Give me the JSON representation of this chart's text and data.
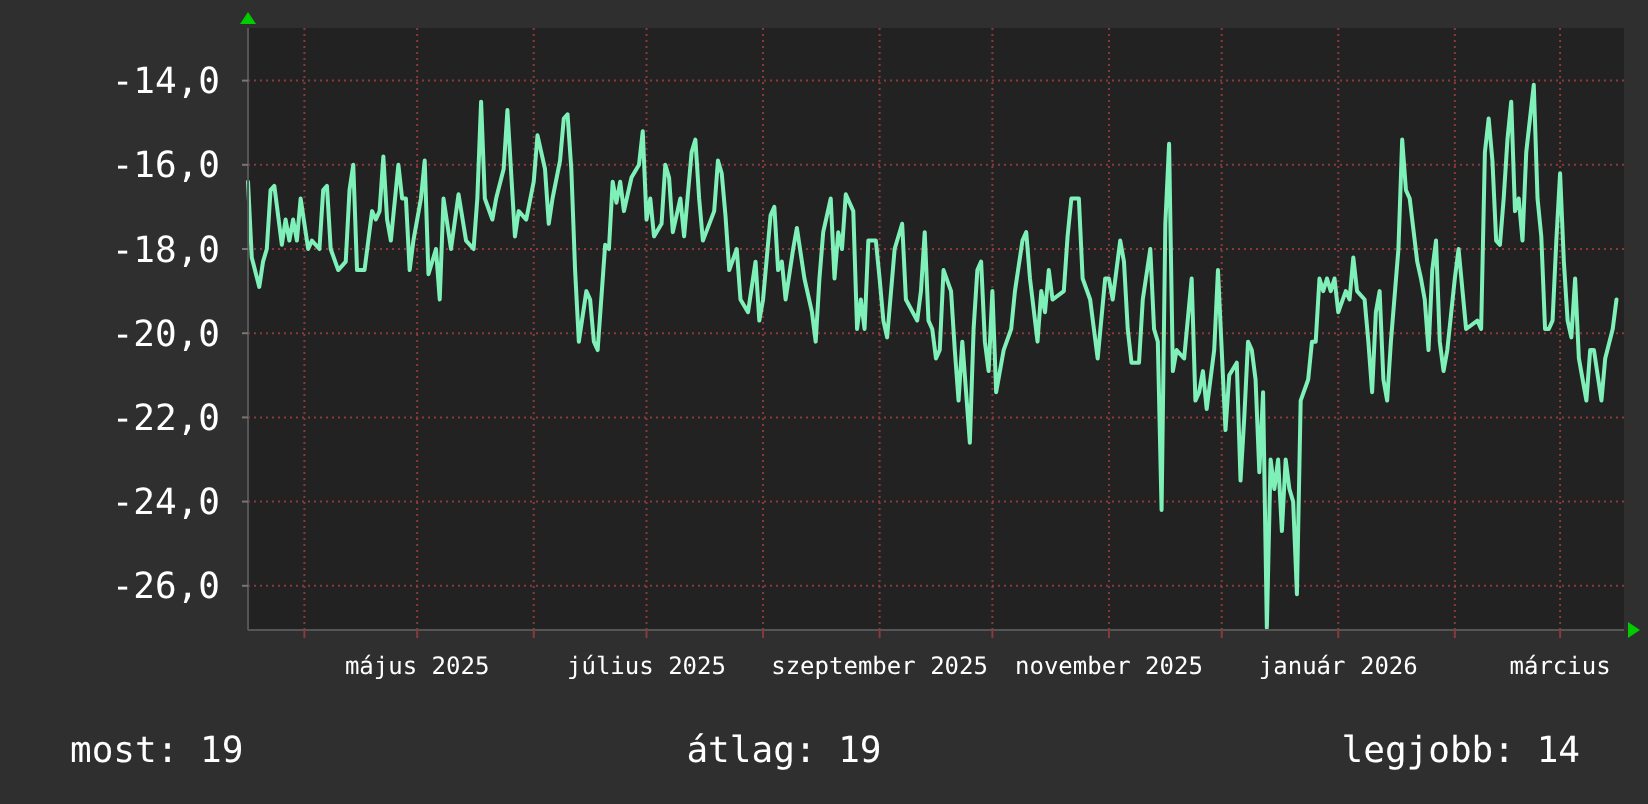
{
  "chart_data": {
    "type": "line",
    "xlim": [
      "2025-03-17",
      "2026-03-18"
    ],
    "xticks": [
      {
        "value": "2025-04-01",
        "label": null
      },
      {
        "value": "2025-05-01",
        "label": "május 2025"
      },
      {
        "value": "2025-06-01",
        "label": null
      },
      {
        "value": "2025-07-01",
        "label": "július 2025"
      },
      {
        "value": "2025-08-01",
        "label": null
      },
      {
        "value": "2025-09-01",
        "label": "szeptember 2025"
      },
      {
        "value": "2025-10-01",
        "label": null
      },
      {
        "value": "2025-11-01",
        "label": "november 2025"
      },
      {
        "value": "2025-12-01",
        "label": null
      },
      {
        "value": "2026-01-01",
        "label": "január 2026"
      },
      {
        "value": "2026-02-01",
        "label": null
      },
      {
        "value": "2026-03-01",
        "label": "március"
      }
    ],
    "ylim": [
      -27.05,
      -12.75
    ],
    "yticks": [
      {
        "value": -14,
        "label": "-14,0"
      },
      {
        "value": -16,
        "label": "-16,0"
      },
      {
        "value": -18,
        "label": "-18,0"
      },
      {
        "value": -20,
        "label": "-20,0"
      },
      {
        "value": -22,
        "label": "-22,0"
      },
      {
        "value": -24,
        "label": "-24,0"
      },
      {
        "value": -26,
        "label": "-26,0"
      }
    ],
    "grid": true,
    "marker": "none",
    "line_style": "solid",
    "annotations": [
      "most: 19",
      "átlag: 19",
      "legjobb: 14"
    ],
    "series": [
      {
        "color": "#7ff0b8",
        "x": [
          "2025-03-17",
          "2025-03-18",
          "2025-03-20",
          "2025-03-21",
          "2025-03-22",
          "2025-03-23",
          "2025-03-24",
          "2025-03-26",
          "2025-03-27",
          "2025-03-28",
          "2025-03-29",
          "2025-03-30",
          "2025-03-31",
          "2025-04-02",
          "2025-04-03",
          "2025-04-05",
          "2025-04-06",
          "2025-04-07",
          "2025-04-08",
          "2025-04-10",
          "2025-04-12",
          "2025-04-13",
          "2025-04-14",
          "2025-04-15",
          "2025-04-17",
          "2025-04-19",
          "2025-04-20",
          "2025-04-21",
          "2025-04-22",
          "2025-04-23",
          "2025-04-24",
          "2025-04-26",
          "2025-04-27",
          "2025-04-28",
          "2025-04-29",
          "2025-04-30",
          "2025-05-02",
          "2025-05-03",
          "2025-05-04",
          "2025-05-06",
          "2025-05-07",
          "2025-05-08",
          "2025-05-10",
          "2025-05-12",
          "2025-05-14",
          "2025-05-16",
          "2025-05-17",
          "2025-05-18",
          "2025-05-19",
          "2025-05-21",
          "2025-05-22",
          "2025-05-24",
          "2025-05-25",
          "2025-05-27",
          "2025-05-28",
          "2025-05-30",
          "2025-06-01",
          "2025-06-02",
          "2025-06-04",
          "2025-06-05",
          "2025-06-06",
          "2025-06-08",
          "2025-06-09",
          "2025-06-10",
          "2025-06-11",
          "2025-06-12",
          "2025-06-13",
          "2025-06-15",
          "2025-06-16",
          "2025-06-17",
          "2025-06-18",
          "2025-06-20",
          "2025-06-21",
          "2025-06-22",
          "2025-06-23",
          "2025-06-24",
          "2025-06-25",
          "2025-06-27",
          "2025-06-29",
          "2025-06-30",
          "2025-07-01",
          "2025-07-02",
          "2025-07-03",
          "2025-07-05",
          "2025-07-06",
          "2025-07-07",
          "2025-07-08",
          "2025-07-10",
          "2025-07-11",
          "2025-07-13",
          "2025-07-14",
          "2025-07-15",
          "2025-07-16",
          "2025-07-19",
          "2025-07-20",
          "2025-07-21",
          "2025-07-22",
          "2025-07-23",
          "2025-07-25",
          "2025-07-26",
          "2025-07-28",
          "2025-07-30",
          "2025-07-31",
          "2025-08-01",
          "2025-08-03",
          "2025-08-04",
          "2025-08-05",
          "2025-08-06",
          "2025-08-07",
          "2025-08-09",
          "2025-08-10",
          "2025-08-12",
          "2025-08-14",
          "2025-08-15",
          "2025-08-16",
          "2025-08-17",
          "2025-08-19",
          "2025-08-20",
          "2025-08-21",
          "2025-08-22",
          "2025-08-23",
          "2025-08-25",
          "2025-08-26",
          "2025-08-27",
          "2025-08-28",
          "2025-08-29",
          "2025-08-31",
          "2025-09-01",
          "2025-09-02",
          "2025-09-03",
          "2025-09-05",
          "2025-09-07",
          "2025-09-08",
          "2025-09-11",
          "2025-09-12",
          "2025-09-13",
          "2025-09-14",
          "2025-09-15",
          "2025-09-16",
          "2025-09-17",
          "2025-09-18",
          "2025-09-20",
          "2025-09-21",
          "2025-09-22",
          "2025-09-23",
          "2025-09-25",
          "2025-09-26",
          "2025-09-27",
          "2025-09-28",
          "2025-09-29",
          "2025-09-30",
          "2025-10-01",
          "2025-10-02",
          "2025-10-04",
          "2025-10-06",
          "2025-10-07",
          "2025-10-09",
          "2025-10-10",
          "2025-10-11",
          "2025-10-13",
          "2025-10-14",
          "2025-10-15",
          "2025-10-16",
          "2025-10-17",
          "2025-10-20",
          "2025-10-21",
          "2025-10-22",
          "2025-10-24",
          "2025-10-25",
          "2025-10-27",
          "2025-10-28",
          "2025-10-29",
          "2025-10-31",
          "2025-11-01",
          "2025-11-02",
          "2025-11-04",
          "2025-11-05",
          "2025-11-06",
          "2025-11-07",
          "2025-11-09",
          "2025-11-10",
          "2025-11-12",
          "2025-11-13",
          "2025-11-14",
          "2025-11-15",
          "2025-11-16",
          "2025-11-17",
          "2025-11-18",
          "2025-11-19",
          "2025-11-21",
          "2025-11-23",
          "2025-11-24",
          "2025-11-25",
          "2025-11-26",
          "2025-11-27",
          "2025-11-29",
          "2025-11-30",
          "2025-12-01",
          "2025-12-02",
          "2025-12-03",
          "2025-12-05",
          "2025-12-06",
          "2025-12-07",
          "2025-12-08",
          "2025-12-09",
          "2025-12-10",
          "2025-12-11",
          "2025-12-12",
          "2025-12-13",
          "2025-12-14",
          "2025-12-15",
          "2025-12-16",
          "2025-12-17",
          "2025-12-18",
          "2025-12-19",
          "2025-12-20",
          "2025-12-21",
          "2025-12-22",
          "2025-12-24",
          "2025-12-25",
          "2025-12-26",
          "2025-12-27",
          "2025-12-28",
          "2025-12-29",
          "2025-12-30",
          "2025-12-31",
          "2026-01-01",
          "2026-01-03",
          "2026-01-04",
          "2026-01-05",
          "2026-01-06",
          "2026-01-08",
          "2026-01-09",
          "2026-01-10",
          "2026-01-11",
          "2026-01-12",
          "2026-01-13",
          "2026-01-14",
          "2026-01-15",
          "2026-01-17",
          "2026-01-18",
          "2026-01-19",
          "2026-01-20",
          "2026-01-22",
          "2026-01-23",
          "2026-01-24",
          "2026-01-25",
          "2026-01-26",
          "2026-01-27",
          "2026-01-28",
          "2026-01-29",
          "2026-01-30",
          "2026-02-01",
          "2026-02-02",
          "2026-02-04",
          "2026-02-07",
          "2026-02-08",
          "2026-02-09",
          "2026-02-10",
          "2026-02-11",
          "2026-02-12",
          "2026-02-13",
          "2026-02-14",
          "2026-02-15",
          "2026-02-16",
          "2026-02-17",
          "2026-02-18",
          "2026-02-19",
          "2026-02-20",
          "2026-02-21",
          "2026-02-22",
          "2026-02-23",
          "2026-02-24",
          "2026-02-25",
          "2026-02-26",
          "2026-02-27",
          "2026-02-28",
          "2026-03-01",
          "2026-03-02",
          "2026-03-03",
          "2026-03-04",
          "2026-03-05",
          "2026-03-06",
          "2026-03-08",
          "2026-03-09",
          "2026-03-10",
          "2026-03-12",
          "2026-03-13",
          "2026-03-15",
          "2026-03-16"
        ],
        "values": [
          -16.4,
          -18.2,
          -18.9,
          -18.3,
          -18.0,
          -16.6,
          -16.5,
          -17.9,
          -17.3,
          -17.8,
          -17.3,
          -17.8,
          -16.8,
          -18.0,
          -17.8,
          -18.0,
          -16.6,
          -16.5,
          -18.0,
          -18.5,
          -18.3,
          -16.6,
          -16.0,
          -18.5,
          -18.5,
          -17.1,
          -17.3,
          -17.1,
          -15.8,
          -17.3,
          -17.8,
          -16.0,
          -16.8,
          -16.8,
          -18.5,
          -17.8,
          -16.8,
          -15.9,
          -18.6,
          -18.0,
          -19.2,
          -16.8,
          -18.0,
          -16.7,
          -17.8,
          -18.0,
          -16.8,
          -14.5,
          -16.8,
          -17.3,
          -16.8,
          -16.1,
          -14.7,
          -17.7,
          -17.1,
          -17.3,
          -16.4,
          -15.3,
          -16.1,
          -17.4,
          -16.8,
          -15.9,
          -14.9,
          -14.8,
          -16.1,
          -18.5,
          -20.2,
          -19.0,
          -19.2,
          -20.2,
          -20.4,
          -17.9,
          -18.0,
          -16.4,
          -16.9,
          -16.4,
          -17.1,
          -16.3,
          -16.0,
          -15.2,
          -17.3,
          -16.8,
          -17.7,
          -17.4,
          -16.0,
          -16.3,
          -17.6,
          -16.8,
          -17.7,
          -15.7,
          -15.4,
          -16.8,
          -17.8,
          -17.1,
          -15.9,
          -16.2,
          -17.2,
          -18.5,
          -18.0,
          -19.2,
          -19.5,
          -18.3,
          -19.7,
          -19.2,
          -17.2,
          -17.0,
          -18.5,
          -18.3,
          -19.2,
          -18.0,
          -17.5,
          -18.7,
          -19.5,
          -20.2,
          -18.7,
          -17.6,
          -16.8,
          -18.7,
          -17.6,
          -18.0,
          -16.7,
          -17.1,
          -19.9,
          -19.2,
          -19.9,
          -17.8,
          -17.8,
          -18.7,
          -19.7,
          -20.1,
          -18.0,
          -17.4,
          -19.2,
          -19.7,
          -19.0,
          -17.6,
          -19.7,
          -19.9,
          -20.6,
          -20.4,
          -18.5,
          -19.0,
          -20.4,
          -21.6,
          -20.2,
          -22.6,
          -19.9,
          -18.5,
          -18.3,
          -20.2,
          -20.9,
          -19.0,
          -21.4,
          -20.4,
          -19.9,
          -19.0,
          -17.8,
          -17.6,
          -18.7,
          -20.2,
          -19.0,
          -19.5,
          -18.5,
          -19.2,
          -19.0,
          -17.7,
          -16.8,
          -16.8,
          -18.7,
          -19.2,
          -19.9,
          -20.6,
          -18.7,
          -18.7,
          -19.2,
          -17.8,
          -18.3,
          -19.9,
          -20.7,
          -20.7,
          -19.2,
          -18.0,
          -19.9,
          -20.2,
          -24.2,
          -17.4,
          -15.5,
          -20.9,
          -20.4,
          -20.6,
          -18.7,
          -21.6,
          -21.4,
          -20.9,
          -21.8,
          -20.4,
          -18.5,
          -20.4,
          -22.3,
          -21.0,
          -20.7,
          -23.5,
          -22.0,
          -20.2,
          -20.4,
          -21.1,
          -23.3,
          -21.4,
          -27.0,
          -23.0,
          -23.7,
          -23.0,
          -24.7,
          -23.0,
          -23.7,
          -24.0,
          -26.2,
          -21.6,
          -21.1,
          -20.2,
          -20.2,
          -18.7,
          -19.0,
          -18.7,
          -19.0,
          -18.7,
          -19.5,
          -19.0,
          -19.2,
          -18.2,
          -19.0,
          -19.2,
          -20.2,
          -21.4,
          -19.5,
          -19.0,
          -21.1,
          -21.6,
          -20.2,
          -18.0,
          -15.4,
          -16.6,
          -16.8,
          -18.3,
          -18.7,
          -19.2,
          -20.4,
          -18.5,
          -17.8,
          -20.2,
          -20.9,
          -20.4,
          -18.7,
          -18.0,
          -19.9,
          -19.7,
          -19.9,
          -15.7,
          -14.9,
          -15.9,
          -17.8,
          -17.9,
          -16.8,
          -15.4,
          -14.5,
          -17.1,
          -16.8,
          -17.8,
          -15.7,
          -14.9,
          -14.1,
          -16.8,
          -17.7,
          -19.9,
          -19.9,
          -19.7,
          -17.8,
          -16.2,
          -18.3,
          -19.7,
          -20.1,
          -18.7,
          -20.6,
          -21.6,
          -20.4,
          -20.4,
          -21.6,
          -20.6,
          -19.9,
          -19.2
        ]
      }
    ]
  }
}
